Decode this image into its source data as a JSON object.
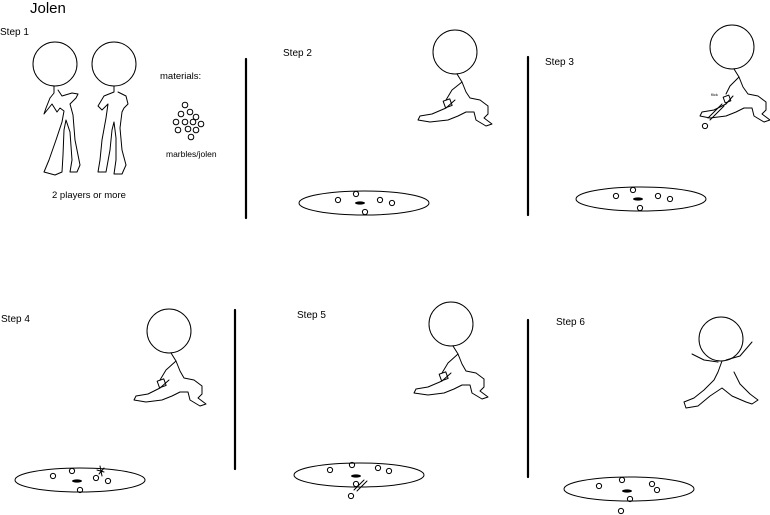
{
  "title": "Jolen",
  "steps": [
    {
      "label": "Step 1"
    },
    {
      "label": "Step 2"
    },
    {
      "label": "Step 3"
    },
    {
      "label": "Step 4"
    },
    {
      "label": "Step 5"
    },
    {
      "label": "Step 6"
    }
  ],
  "step1": {
    "materials_label": "materials:",
    "marbles_caption": "marbles/jolen",
    "players_caption": "2  players or more"
  },
  "step3": {
    "flick_label": "flick"
  }
}
